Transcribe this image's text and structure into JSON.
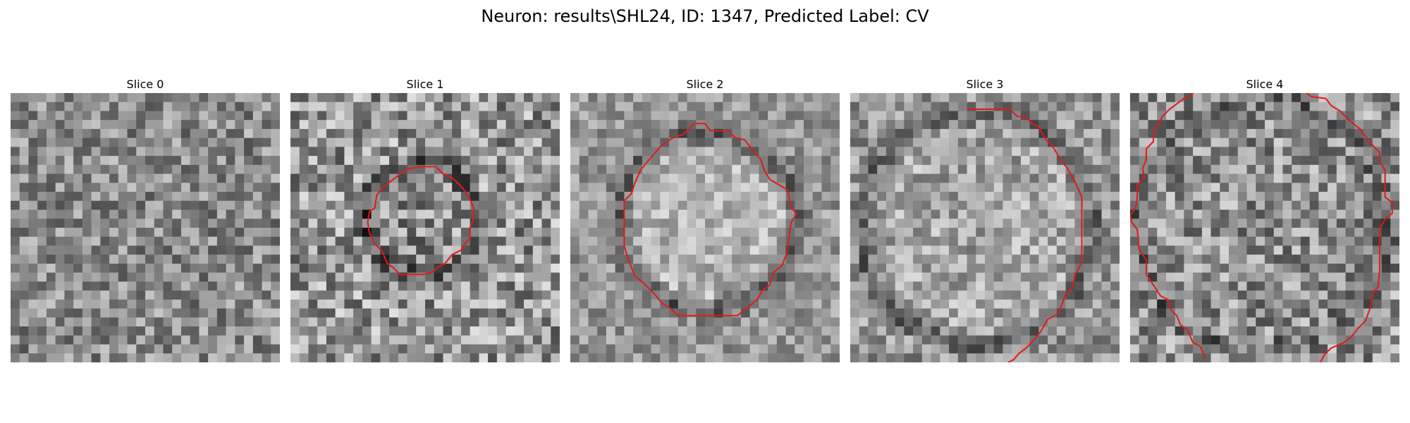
{
  "figure": {
    "title": "Neuron: results\\SHL24, ID: 1347, Predicted Label: CV"
  },
  "panels": [
    {
      "title": "Slice 0",
      "contour": []
    },
    {
      "title": "Slice 1",
      "contour": [
        [
          14.8,
          8.2
        ],
        [
          16.2,
          8.2
        ],
        [
          17.0,
          9.0
        ],
        [
          18.0,
          9.4
        ],
        [
          19.2,
          10.6
        ],
        [
          20.0,
          11.8
        ],
        [
          20.4,
          12.8
        ],
        [
          20.4,
          14.0
        ],
        [
          20.0,
          15.0
        ],
        [
          20.0,
          16.2
        ],
        [
          19.4,
          16.8
        ],
        [
          19.2,
          17.4
        ],
        [
          18.0,
          18.0
        ],
        [
          17.2,
          19.0
        ],
        [
          16.4,
          19.4
        ],
        [
          15.8,
          20.0
        ],
        [
          14.8,
          20.2
        ],
        [
          12.2,
          20.2
        ],
        [
          11.4,
          19.4
        ],
        [
          10.8,
          19.0
        ],
        [
          10.2,
          17.6
        ],
        [
          9.4,
          16.8
        ],
        [
          8.8,
          15.6
        ],
        [
          8.6,
          14.4
        ],
        [
          8.8,
          13.2
        ],
        [
          9.4,
          12.8
        ],
        [
          9.6,
          11.4
        ],
        [
          10.2,
          10.6
        ],
        [
          11.2,
          9.8
        ],
        [
          12.0,
          9.2
        ],
        [
          13.2,
          8.4
        ],
        [
          14.8,
          8.2
        ]
      ]
    },
    {
      "title": "Slice 2",
      "contour": [
        [
          13.8,
          3.4
        ],
        [
          15.0,
          3.4
        ],
        [
          15.6,
          4.2
        ],
        [
          17.6,
          4.2
        ],
        [
          18.4,
          5.0
        ],
        [
          19.4,
          5.2
        ],
        [
          20.2,
          6.2
        ],
        [
          21.2,
          7.4
        ],
        [
          21.6,
          8.6
        ],
        [
          22.2,
          9.6
        ],
        [
          24.2,
          10.8
        ],
        [
          24.6,
          12.8
        ],
        [
          25.2,
          13.4
        ],
        [
          24.6,
          14.4
        ],
        [
          24.4,
          15.6
        ],
        [
          24.2,
          17.6
        ],
        [
          23.6,
          19.2
        ],
        [
          22.6,
          20.0
        ],
        [
          22.2,
          21.4
        ],
        [
          21.4,
          22.0
        ],
        [
          20.8,
          23.0
        ],
        [
          19.6,
          24.0
        ],
        [
          18.6,
          24.8
        ],
        [
          12.0,
          24.8
        ],
        [
          11.2,
          24.0
        ],
        [
          10.2,
          23.4
        ],
        [
          9.4,
          22.4
        ],
        [
          8.2,
          21.2
        ],
        [
          7.2,
          20.4
        ],
        [
          6.4,
          18.4
        ],
        [
          6.0,
          17.0
        ],
        [
          6.0,
          12.0
        ],
        [
          6.8,
          11.2
        ],
        [
          7.2,
          10.0
        ],
        [
          7.8,
          8.6
        ],
        [
          8.8,
          7.4
        ],
        [
          10.0,
          6.0
        ],
        [
          11.4,
          5.0
        ],
        [
          12.6,
          4.6
        ],
        [
          13.8,
          3.4
        ]
      ]
    },
    {
      "title": "Slice 3",
      "contour": [
        [
          13.0,
          1.8
        ],
        [
          17.8,
          1.8
        ],
        [
          18.6,
          2.6
        ],
        [
          19.6,
          2.6
        ],
        [
          20.2,
          3.4
        ],
        [
          21.0,
          3.8
        ],
        [
          21.8,
          5.2
        ],
        [
          22.6,
          6.0
        ],
        [
          23.4,
          7.4
        ],
        [
          24.2,
          8.4
        ],
        [
          25.0,
          9.8
        ],
        [
          25.8,
          11.6
        ],
        [
          25.8,
          18.8
        ],
        [
          25.0,
          20.4
        ],
        [
          24.8,
          21.6
        ],
        [
          24.0,
          22.4
        ],
        [
          23.2,
          24.6
        ],
        [
          22.0,
          25.2
        ],
        [
          21.2,
          26.6
        ],
        [
          20.2,
          27.8
        ],
        [
          19.6,
          28.4
        ],
        [
          18.8,
          29.0
        ],
        [
          18.2,
          29.7
        ],
        [
          17.6,
          30.0
        ]
      ]
    },
    {
      "title": "Slice 4",
      "contour": [
        [
          7.2,
          -0.2
        ],
        [
          6.6,
          0.4
        ],
        [
          6.0,
          0.6
        ],
        [
          5.2,
          1.2
        ],
        [
          4.4,
          1.8
        ],
        [
          3.6,
          2.6
        ],
        [
          3.2,
          3.4
        ],
        [
          2.6,
          4.4
        ],
        [
          2.6,
          5.4
        ],
        [
          1.8,
          6.2
        ],
        [
          1.8,
          7.4
        ],
        [
          1.4,
          8.4
        ],
        [
          1.6,
          9.4
        ],
        [
          0.8,
          10.2
        ],
        [
          0.8,
          11.6
        ],
        [
          0.6,
          12.8
        ],
        [
          0.0,
          13.6
        ],
        [
          0.2,
          14.4
        ],
        [
          0.8,
          15.2
        ],
        [
          1.0,
          17.4
        ],
        [
          1.8,
          18.6
        ],
        [
          1.8,
          20.2
        ],
        [
          2.6,
          21.4
        ],
        [
          3.4,
          22.6
        ],
        [
          4.2,
          23.0
        ],
        [
          4.6,
          24.2
        ],
        [
          5.2,
          24.8
        ],
        [
          5.6,
          25.8
        ],
        [
          6.4,
          26.4
        ],
        [
          7.0,
          27.8
        ],
        [
          7.8,
          28.2
        ],
        [
          8.4,
          29.6
        ]
      ]
    },
    {
      "title": "",
      "contour": [
        [
          19.4,
          -0.2
        ],
        [
          20.2,
          0.4
        ],
        [
          21.8,
          0.6
        ],
        [
          22.4,
          1.4
        ],
        [
          23.4,
          2.0
        ],
        [
          24.6,
          3.2
        ],
        [
          25.6,
          4.0
        ],
        [
          26.2,
          4.8
        ],
        [
          27.0,
          5.8
        ],
        [
          27.8,
          6.6
        ],
        [
          27.8,
          7.6
        ],
        [
          28.4,
          8.6
        ],
        [
          28.4,
          11.6
        ],
        [
          29.2,
          12.2
        ],
        [
          29.2,
          13.4
        ],
        [
          28.4,
          14.0
        ],
        [
          27.8,
          15.2
        ],
        [
          27.8,
          17.6
        ],
        [
          27.8,
          19.8
        ],
        [
          27.6,
          21.6
        ],
        [
          27.0,
          22.4
        ],
        [
          26.8,
          23.8
        ],
        [
          26.2,
          25.4
        ],
        [
          25.4,
          26.2
        ],
        [
          24.6,
          27.2
        ],
        [
          23.8,
          27.8
        ],
        [
          22.4,
          28.4
        ],
        [
          21.6,
          29.2
        ],
        [
          21.2,
          30.0
        ]
      ]
    }
  ]
}
